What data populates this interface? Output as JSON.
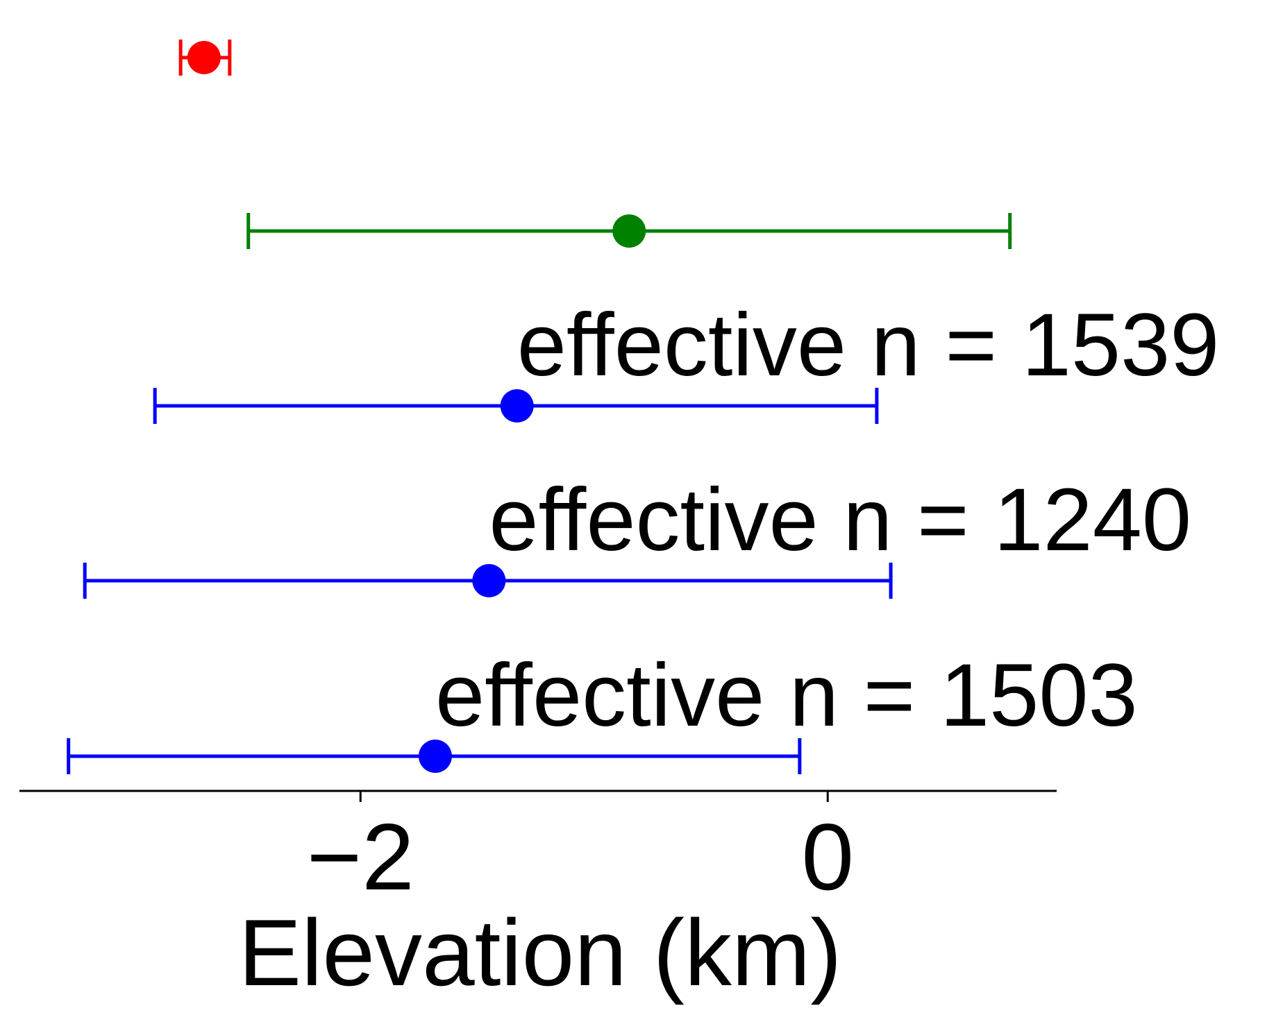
{
  "chart_data": {
    "type": "scatter",
    "title": "",
    "xlabel": "Elevation (km)",
    "ylabel": "",
    "xlim": [
      -3.46,
      0.98
    ],
    "x_ticks": [
      {
        "value": -2,
        "label": "−2"
      },
      {
        "value": 0,
        "label": "0"
      }
    ],
    "grid": false,
    "legend": "none",
    "points": [
      {
        "center": -2.67,
        "low": -2.77,
        "high": -2.56,
        "color": "#ff0000",
        "annotation": ""
      },
      {
        "center": -0.85,
        "low": -2.48,
        "high": 0.78,
        "color": "#008000",
        "annotation": ""
      },
      {
        "center": -1.33,
        "low": -2.88,
        "high": 0.21,
        "color": "#0000ff",
        "annotation": "effective n = 1539"
      },
      {
        "center": -1.45,
        "low": -3.18,
        "high": 0.27,
        "color": "#0000ff",
        "annotation": "effective n = 1240"
      },
      {
        "center": -1.68,
        "low": -3.25,
        "high": -0.12,
        "color": "#0000ff",
        "annotation": "effective n = 1503"
      }
    ]
  }
}
